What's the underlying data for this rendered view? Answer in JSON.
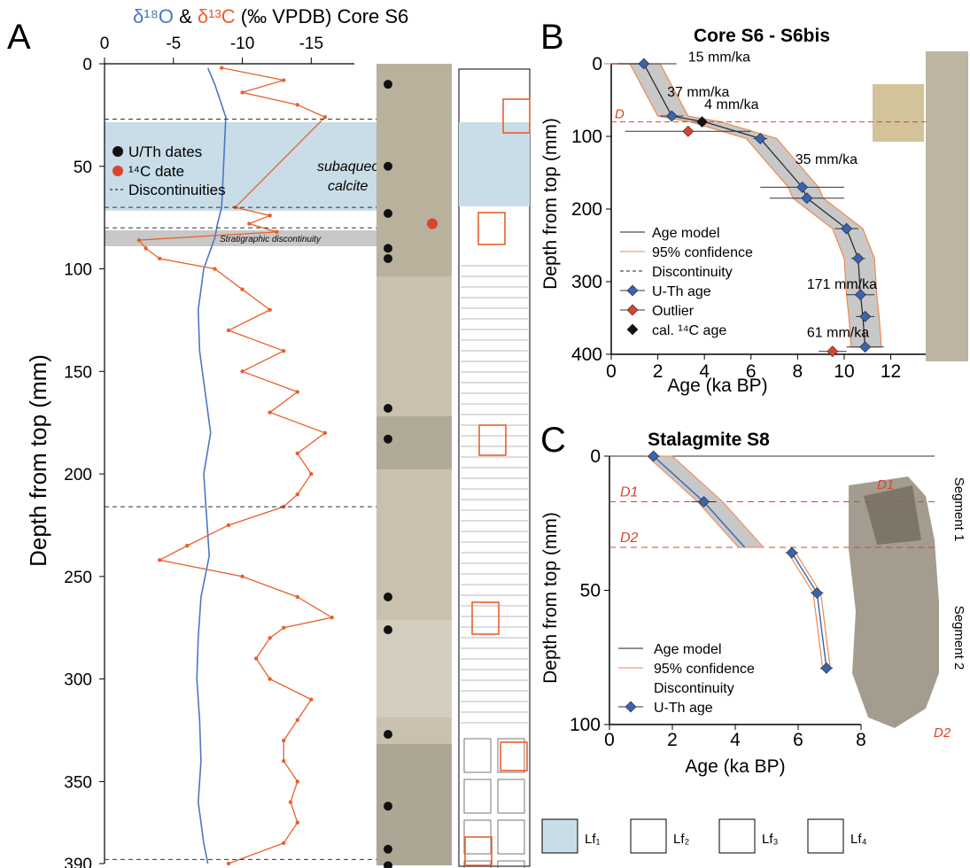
{
  "colors": {
    "d18O": "#4a78c4",
    "d13C": "#e8602c",
    "uth": "#3a63b0",
    "outlier": "#d9442c",
    "band": "#c8c8c8",
    "conf": "#f0874f",
    "subaq": "#c9dde8"
  },
  "panelA": {
    "letter": "A",
    "title_d18O": "δ¹⁸O",
    "title_amp": " & ",
    "title_d13C": "δ¹³C",
    "title_rest": " (‰ VPDB) Core S6",
    "xticks": [
      "0",
      "-5",
      "-10",
      "-15"
    ],
    "yticks": [
      "0",
      "50",
      "100",
      "150",
      "200",
      "250",
      "300",
      "350",
      "390"
    ],
    "ylabel": "Depth from top (mm)",
    "legend": {
      "uth": "U/Th dates",
      "c14": "¹⁴C date",
      "disc": "Discontinuities"
    },
    "subaq_label": "subaqueous calcite",
    "strat_label": "Stratigraphic discontinuity",
    "lithofacies": [
      "Lf₁",
      "Lf₂",
      "Lf₃",
      "Lf₄"
    ]
  },
  "panelB": {
    "letter": "B",
    "title": "Core S6 - S6bis",
    "xlabel": "Age (ka BP)",
    "ylabel": "Depth from top (mm)",
    "xticks": [
      "0",
      "2",
      "4",
      "6",
      "8",
      "10",
      "12"
    ],
    "yticks": [
      "0",
      "100",
      "200",
      "300",
      "400"
    ],
    "disc_label": "D",
    "rates": [
      "15 mm/ka",
      "37 mm/ka",
      "4 mm/ka",
      "35 mm/ka",
      "171 mm/ka",
      "61 mm/ka"
    ],
    "legend": [
      "Age model",
      "95% confidence",
      "Discontinuity",
      "U-Th age",
      "Outlier",
      "cal. ¹⁴C age"
    ]
  },
  "panelC": {
    "letter": "C",
    "title": "Stalagmite S8",
    "xlabel": "Age (ka BP)",
    "ylabel": "Depth from top (mm)",
    "xticks": [
      "0",
      "2",
      "4",
      "6",
      "8"
    ],
    "yticks": [
      "0",
      "50",
      "100"
    ],
    "disc_labels": [
      "D1",
      "D2"
    ],
    "photo_labels": [
      "D1",
      "D2"
    ],
    "segments": [
      "Segment 1",
      "Segment 2"
    ],
    "legend": [
      "Age model",
      "95% confidence",
      "Discontinuity",
      "U-Th age"
    ]
  },
  "chart_data": [
    {
      "type": "line",
      "title": "δ¹⁸O & δ¹³C (‰ VPDB) Core S6",
      "ylabel": "Depth from top (mm)",
      "xlim": [
        0,
        -18
      ],
      "ylim": [
        0,
        390
      ],
      "series": [
        {
          "name": "δ¹⁸O",
          "depth": [
            2,
            10,
            20,
            26,
            70,
            78,
            85,
            100,
            120,
            140,
            160,
            180,
            200,
            220,
            240,
            260,
            280,
            300,
            320,
            340,
            360,
            380,
            390
          ],
          "values": [
            -7.5,
            -8,
            -8.5,
            -8.8,
            -8.5,
            -8.2,
            -8,
            -7.2,
            -6.8,
            -6.9,
            -7.3,
            -7.7,
            -7.2,
            -7.4,
            -7.6,
            -7,
            -6.8,
            -6.7,
            -6.9,
            -7,
            -6.8,
            -7.2,
            -7.5
          ]
        },
        {
          "name": "δ¹³C",
          "depth": [
            2,
            8,
            14,
            20,
            26,
            70,
            74,
            78,
            82,
            86,
            90,
            95,
            100,
            110,
            120,
            130,
            140,
            150,
            160,
            170,
            180,
            190,
            200,
            210,
            216,
            225,
            235,
            242,
            250,
            260,
            270,
            275,
            280,
            290,
            300,
            310,
            320,
            330,
            340,
            350,
            360,
            370,
            380,
            390
          ],
          "values": [
            -8.5,
            -13,
            -10,
            -14,
            -16,
            -9.5,
            -12,
            -10.5,
            -12.5,
            -2.5,
            -3,
            -4,
            -8,
            -10,
            -12,
            -9,
            -13,
            -10,
            -14,
            -12,
            -16,
            -14,
            -15,
            -14,
            -13,
            -9,
            -6,
            -4,
            -10,
            -14,
            -16.5,
            -13,
            -12,
            -11,
            -12,
            -15,
            -14,
            -13,
            -13,
            -14,
            -13.5,
            -14,
            -13,
            -9
          ]
        }
      ],
      "uth_dates_depth": [
        10,
        50,
        73,
        90,
        95,
        168,
        183,
        260,
        276,
        327,
        362,
        383,
        391
      ],
      "c14_date_depth": [
        78
      ],
      "discontinuities_depth": [
        27,
        70,
        80,
        216,
        388
      ],
      "xticks": [
        0,
        -5,
        -10,
        -15
      ],
      "yticks": [
        0,
        50,
        100,
        150,
        200,
        250,
        300,
        350,
        390
      ]
    },
    {
      "type": "line",
      "title": "Core S6 - S6bis",
      "xlabel": "Age (ka BP)",
      "ylabel": "Depth from top (mm)",
      "xlim": [
        0,
        13.5
      ],
      "ylim": [
        0,
        400
      ],
      "series": [
        {
          "name": "Age model",
          "x": [
            0.3,
            1.4,
            2.6,
            4.0,
            6.4,
            8.2,
            8.4,
            10.1,
            10.6,
            10.7,
            10.8,
            10.9
          ],
          "y": [
            0,
            0,
            72,
            80,
            103,
            170,
            185,
            227,
            268,
            318,
            348,
            390
          ]
        }
      ],
      "uth_age": [
        {
          "x": 1.4,
          "y": 0,
          "err": 1.4
        },
        {
          "x": 2.6,
          "y": 72,
          "err": 0.5
        },
        {
          "x": 6.4,
          "y": 103,
          "err": 0.3
        },
        {
          "x": 8.2,
          "y": 170,
          "err": 1.8
        },
        {
          "x": 8.4,
          "y": 185,
          "err": 1.6
        },
        {
          "x": 10.1,
          "y": 227,
          "err": 0.5
        },
        {
          "x": 10.6,
          "y": 268,
          "err": 0.3
        },
        {
          "x": 10.7,
          "y": 318,
          "err": 0.6
        },
        {
          "x": 10.9,
          "y": 348,
          "err": 0.4
        },
        {
          "x": 10.9,
          "y": 390,
          "err": 0.8
        }
      ],
      "outliers": [
        {
          "x": 3.3,
          "y": 93,
          "err": 2.7
        },
        {
          "x": 9.5,
          "y": 396,
          "err": 0.6
        }
      ],
      "cal_14c_age": [
        {
          "x": 3.9,
          "y": 80
        }
      ],
      "discontinuity_y": 80,
      "rates": [
        {
          "label": "15 mm/ka"
        },
        {
          "label": "37 mm/ka"
        },
        {
          "label": "4 mm/ka"
        },
        {
          "label": "35 mm/ka"
        },
        {
          "label": "171 mm/ka"
        },
        {
          "label": "61 mm/ka"
        }
      ]
    },
    {
      "type": "line",
      "title": "Stalagmite S8",
      "xlabel": "Age (ka BP)",
      "ylabel": "Depth from top (mm)",
      "xlim": [
        0,
        8
      ],
      "ylim": [
        0,
        100
      ],
      "series": [
        {
          "name": "Age model segment 1",
          "x": [
            1.4,
            3.0,
            4.3
          ],
          "y": [
            0,
            17,
            34
          ]
        },
        {
          "name": "Age model segment 2",
          "x": [
            5.8,
            6.6,
            6.9
          ],
          "y": [
            36,
            51,
            79
          ]
        }
      ],
      "uth_age": [
        {
          "x": 1.4,
          "y": 0,
          "err": 0.2
        },
        {
          "x": 3.0,
          "y": 17,
          "err": 0.4
        },
        {
          "x": 5.8,
          "y": 36,
          "err": 0.2
        },
        {
          "x": 6.6,
          "y": 51,
          "err": 0.2
        },
        {
          "x": 6.9,
          "y": 79,
          "err": 0.2
        }
      ],
      "discontinuities": [
        {
          "label": "D1",
          "y": 17
        },
        {
          "label": "D2",
          "y": 34
        }
      ]
    }
  ]
}
